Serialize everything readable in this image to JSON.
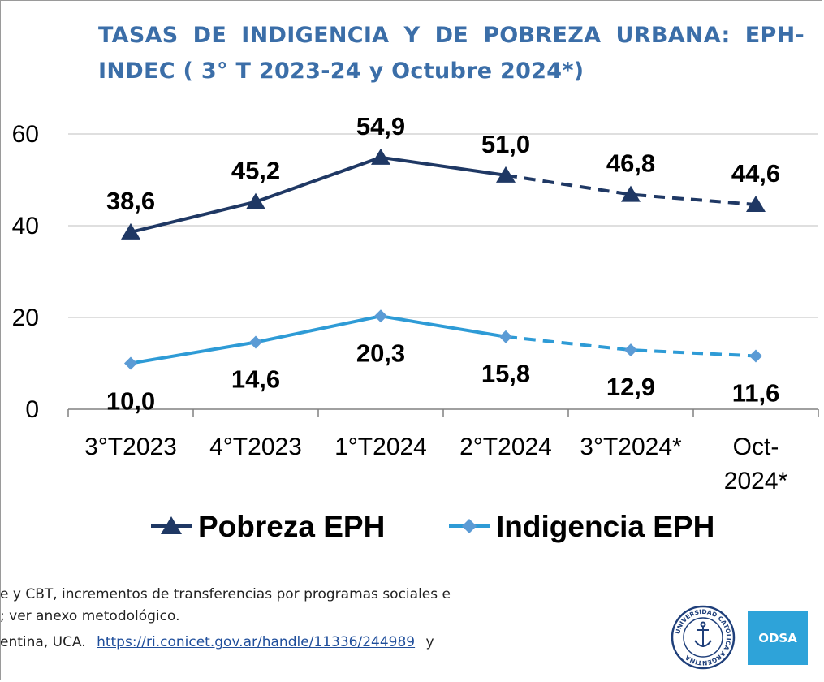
{
  "title": {
    "line1": "TASAS DE INDIGENCIA Y DE POBREZA URBANA: EPH-",
    "line2": "INDEC ( 3° T 2023-24 y Octubre 2024*)"
  },
  "chart_data": {
    "type": "line",
    "title": "TASAS DE INDIGENCIA Y DE POBREZA URBANA: EPH-INDEC ( 3° T 2023-24 y Octubre 2024*)",
    "categories": [
      "3°T2023",
      "4°T2023",
      "1°T2024",
      "2°T2024",
      "3°T2024*",
      "Oct-2024*"
    ],
    "category_lines": [
      [
        "3°T2023"
      ],
      [
        "4°T2023"
      ],
      [
        "1°T2024"
      ],
      [
        "2°T2024"
      ],
      [
        "3°T2024*"
      ],
      [
        "Oct-",
        "2024*"
      ]
    ],
    "yticks": [
      "0",
      "20",
      "40",
      "60"
    ],
    "ylim": [
      0,
      60
    ],
    "grid": true,
    "legend_position": "bottom",
    "series": [
      {
        "name": "Pobreza EPH",
        "values": [
          38.6,
          45.2,
          54.9,
          51.0,
          46.8,
          44.6
        ],
        "labels": [
          "38,6",
          "45,2",
          "54,9",
          "51,0",
          "46,8",
          "44,6"
        ],
        "color": "#1f3864",
        "marker": "triangle",
        "dashed_from_index": 3
      },
      {
        "name": "Indigencia EPH",
        "values": [
          10.0,
          14.6,
          20.3,
          15.8,
          12.9,
          11.6
        ],
        "labels": [
          "10,0",
          "14,6",
          "20,3",
          "15,8",
          "12,9",
          "11,6"
        ],
        "color": "#2e9bd6",
        "marker_color": "#5b9bd5",
        "marker": "diamond",
        "dashed_from_index": 3
      }
    ]
  },
  "footnotes": {
    "line1": "e y CBT, incrementos de transferencias por programas sociales e",
    "line2": "; ver anexo metodológico.",
    "line3_prefix": "entina,  UCA.",
    "line3_link": "https://ri.conicet.gov.ar/handle/11336/244989",
    "line3_suffix": "y"
  },
  "logos": {
    "seal_text": "UNIVERSIDAD CATOLICA ARGENTINA",
    "odsa_label": "ODSA"
  }
}
